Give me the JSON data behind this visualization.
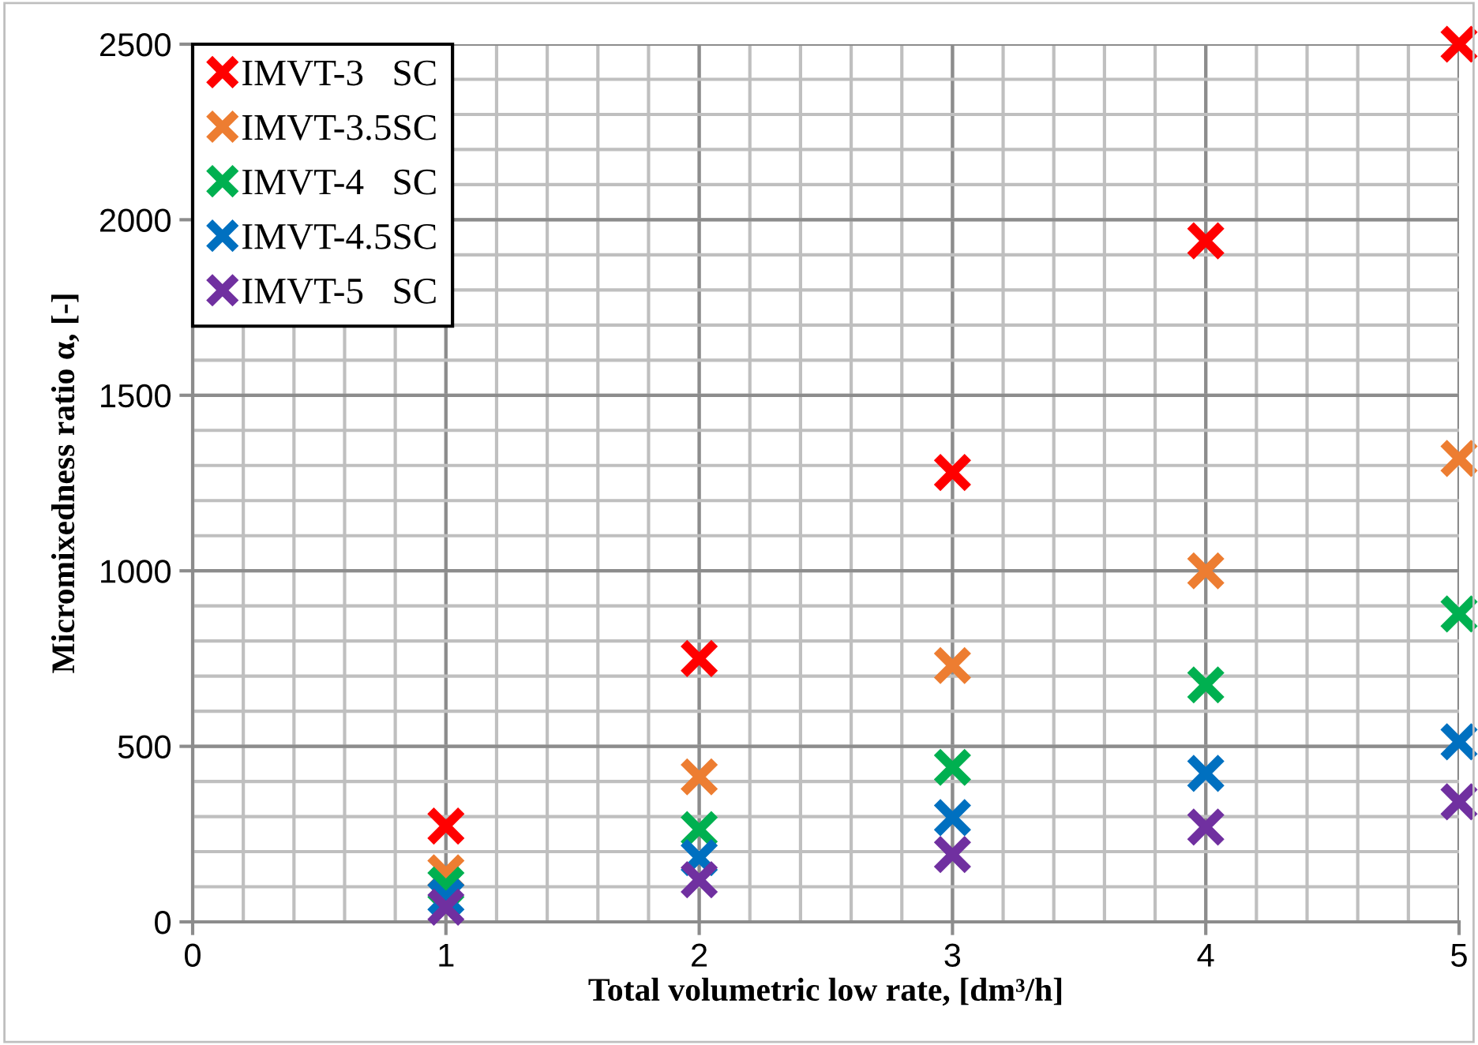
{
  "chart_data": {
    "type": "scatter",
    "xlabel": "Total volumetric low rate, [dm³/h]",
    "ylabel": "Micromixedness ratio α, [-]",
    "x": [
      1,
      2,
      3,
      4,
      5
    ],
    "xlim": [
      0,
      5
    ],
    "xticks": [
      0,
      1,
      2,
      3,
      4,
      5
    ],
    "ylim": [
      0,
      2500
    ],
    "yticks": [
      0,
      500,
      1000,
      1500,
      2000,
      2500
    ],
    "grid": true,
    "legend": "top left",
    "marker": "cross",
    "series": [
      {
        "name": "IMVT-3   SC",
        "color": "#ff0000",
        "values": [
          273,
          750,
          1280,
          1940,
          2500
        ]
      },
      {
        "name": "IMVT-3.5SC",
        "color": "#ed7d31",
        "values": [
          140,
          413,
          730,
          1000,
          1320
        ]
      },
      {
        "name": "IMVT-4   SC",
        "color": "#00b050",
        "values": [
          105,
          263,
          440,
          675,
          877
        ]
      },
      {
        "name": "IMVT-4.5SC",
        "color": "#0070c0",
        "values": [
          70,
          183,
          297,
          423,
          513
        ]
      },
      {
        "name": "IMVT-5   SC",
        "color": "#7030a0",
        "values": [
          42,
          120,
          192,
          270,
          342
        ]
      }
    ]
  }
}
